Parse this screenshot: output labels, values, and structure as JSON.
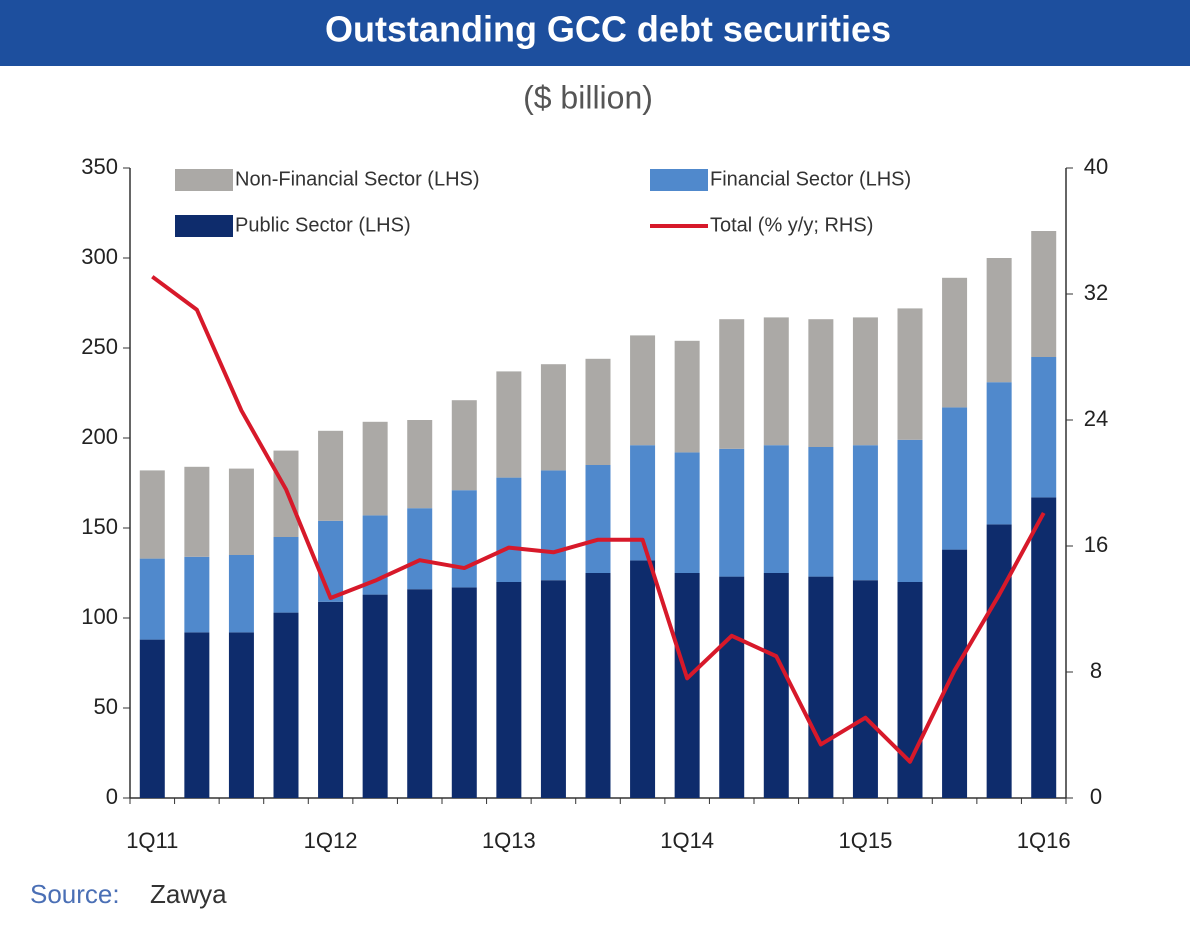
{
  "chart_data": {
    "type": "bar",
    "stacked": true,
    "title": "Outstanding GCC debt securities",
    "subtitle": "($ billion)",
    "source_label": "Source:",
    "source": "Zawya",
    "categories": [
      "1Q11",
      null,
      null,
      null,
      "1Q12",
      null,
      null,
      null,
      "1Q13",
      null,
      null,
      null,
      "1Q14",
      null,
      null,
      null,
      "1Q15",
      null,
      null,
      null,
      "1Q16"
    ],
    "series": [
      {
        "name": "Public Sector (LHS)",
        "color": "#0e2c6c",
        "type": "bar",
        "values": [
          88,
          92,
          92,
          103,
          109,
          113,
          116,
          117,
          120,
          121,
          125,
          132,
          125,
          123,
          125,
          123,
          121,
          120,
          138,
          152,
          167
        ]
      },
      {
        "name": "Financial Sector (LHS)",
        "color": "#5089cc",
        "type": "bar",
        "values": [
          45,
          42,
          43,
          42,
          45,
          44,
          45,
          54,
          58,
          61,
          60,
          64,
          67,
          71,
          71,
          72,
          75,
          79,
          79,
          79,
          78
        ]
      },
      {
        "name": "Non-Financial Sector (LHS)",
        "color": "#aba9a6",
        "type": "bar",
        "values": [
          49,
          50,
          48,
          48,
          50,
          52,
          49,
          50,
          59,
          59,
          59,
          61,
          62,
          72,
          71,
          71,
          71,
          73,
          72,
          69,
          70
        ]
      },
      {
        "name": "Total (% y/y; RHS)",
        "color": "#d7192a",
        "type": "line",
        "axis": "y2",
        "values": [
          33.1,
          31.0,
          24.6,
          19.6,
          12.7,
          13.8,
          15.1,
          14.6,
          15.9,
          15.6,
          16.4,
          16.4,
          7.6,
          10.3,
          9.0,
          3.4,
          5.1,
          2.3,
          8.1,
          12.9,
          18.1
        ]
      }
    ],
    "ylim": [
      0,
      350
    ],
    "yticks": [
      0,
      50,
      100,
      150,
      200,
      250,
      300,
      350
    ],
    "y2lim": [
      0,
      40
    ],
    "y2ticks": [
      0,
      8,
      16,
      24,
      32,
      40
    ],
    "grid": false
  }
}
